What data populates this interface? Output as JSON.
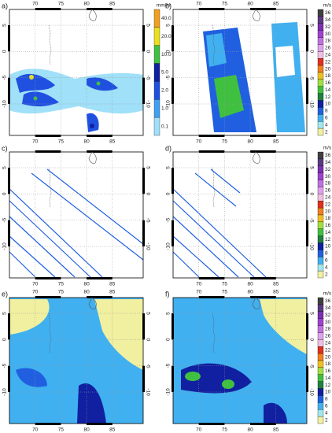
{
  "lon_ticks": [
    70,
    75,
    80,
    85
  ],
  "lat_ticks": [
    5,
    0,
    -5,
    -10
  ],
  "lon_lim": [
    65,
    91
  ],
  "lat_lim": [
    8,
    -16
  ],
  "panels": [
    {
      "label": "a)",
      "colorbar": {
        "unit": "mm/hr",
        "ticks": [
          {
            "value": 40,
            "label": "40.0"
          },
          {
            "value": 20,
            "label": "20.0"
          },
          {
            "value": 10,
            "label": "10.0"
          },
          {
            "value": 5,
            "label": "5.0"
          },
          {
            "value": 2,
            "label": "2.0"
          },
          {
            "value": 1,
            "label": "1.0"
          },
          {
            "value": 0.1,
            "label": "0.1"
          }
        ],
        "colors": [
          "#f0a020",
          "#e8e020",
          "#40c040",
          "#1020a0",
          "#2050e0",
          "#40a0f0",
          "#a0e0f8"
        ]
      }
    },
    {
      "label": "b)",
      "colorbar": {
        "unit": "m/s",
        "ticks": [
          36,
          34,
          32,
          30,
          28,
          26,
          24,
          22,
          20,
          18,
          16,
          14,
          12,
          10,
          8,
          6,
          4,
          2
        ],
        "colors": [
          "#404040",
          "#5a3a80",
          "#7a30b0",
          "#a040d0",
          "#c070e0",
          "#e0a0f0",
          "#f0c0e0",
          "#e03020",
          "#f08020",
          "#f0c020",
          "#a0e040",
          "#40c040",
          "#208040",
          "#1020a0",
          "#2060e0",
          "#40b0f0",
          "#a0e8f0",
          "#f0f0a0"
        ]
      }
    },
    {
      "label": "c)"
    },
    {
      "label": "d)",
      "colorbar": {
        "unit": "m/s",
        "ticks": [
          36,
          34,
          32,
          30,
          28,
          26,
          24,
          22,
          20,
          18,
          16,
          14,
          12,
          10,
          8,
          6,
          4,
          2
        ],
        "colors": [
          "#404040",
          "#5a3a80",
          "#7a30b0",
          "#a040d0",
          "#c070e0",
          "#e0a0f0",
          "#f0c0e0",
          "#e03020",
          "#f08020",
          "#f0c020",
          "#a0e040",
          "#40c040",
          "#208040",
          "#1020a0",
          "#2060e0",
          "#40b0f0",
          "#a0e8f0",
          "#f0f0a0"
        ]
      }
    },
    {
      "label": "e)"
    },
    {
      "label": "f)",
      "colorbar": {
        "unit": "m/s",
        "ticks": [
          36,
          34,
          32,
          30,
          28,
          26,
          24,
          22,
          20,
          18,
          16,
          14,
          12,
          10,
          8,
          6,
          4,
          2
        ],
        "colors": [
          "#404040",
          "#5a3a80",
          "#7a30b0",
          "#a040d0",
          "#c070e0",
          "#e0a0f0",
          "#f0c0e0",
          "#e03020",
          "#f08020",
          "#f0c020",
          "#a0e040",
          "#40c040",
          "#208040",
          "#1020a0",
          "#2060e0",
          "#40b0f0",
          "#a0e8f0",
          "#f0f0a0"
        ]
      }
    }
  ]
}
